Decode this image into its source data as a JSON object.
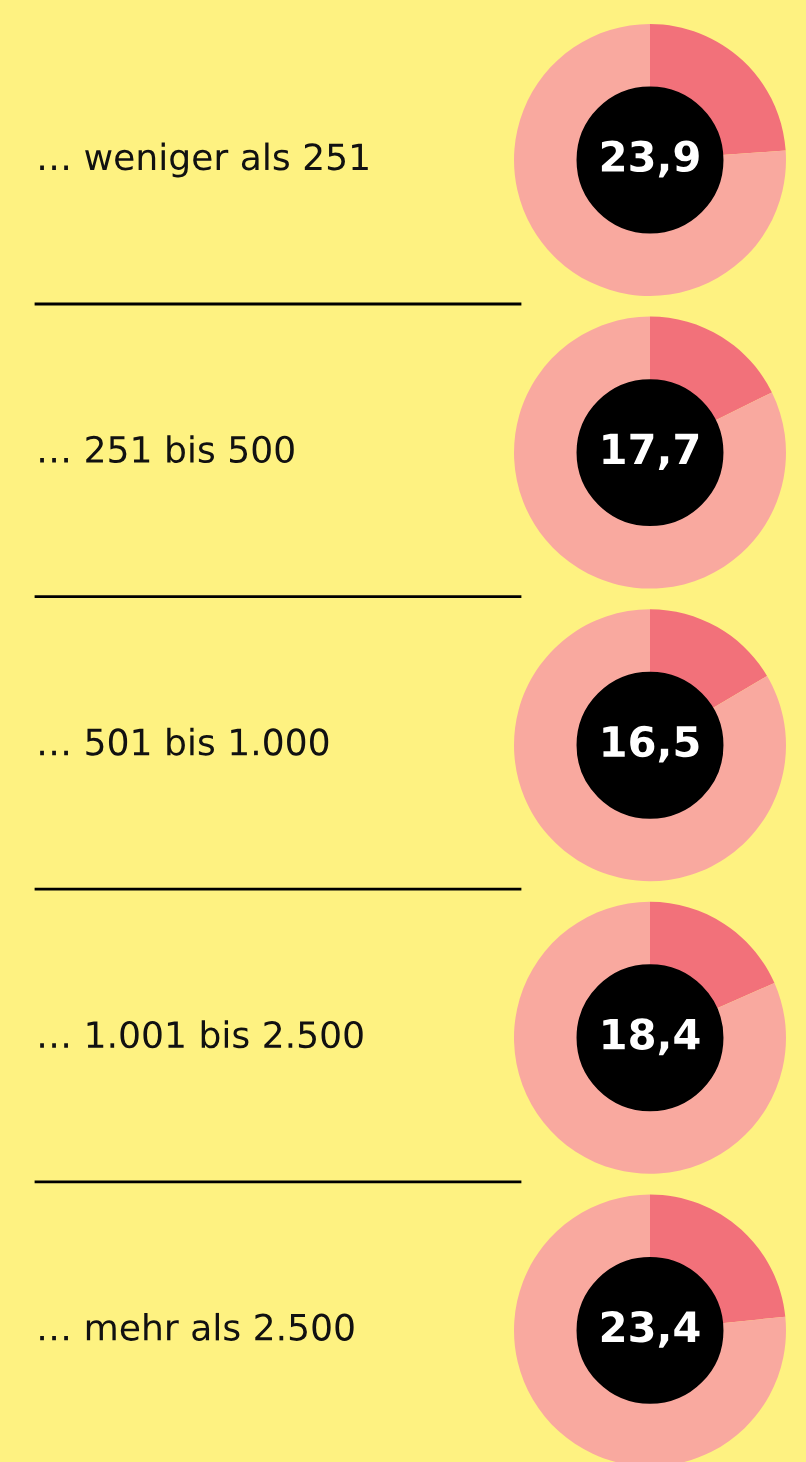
{
  "chart_data": [
    {
      "type": "donut",
      "title": "… weniger als 251",
      "categories": [
        null,
        null
      ],
      "values": [
        23.9,
        76.1
      ],
      "colors": [
        "#f2717a",
        "#f9a99f"
      ],
      "value_labels": [
        "23,9",
        null
      ]
    },
    {
      "type": "donut",
      "title": "… 251 bis 500",
      "categories": [
        null,
        null
      ],
      "values": [
        17.7,
        82.3
      ],
      "colors": [
        "#f2717a",
        "#f9a99f"
      ],
      "value_labels": [
        "17,7",
        null
      ]
    },
    {
      "type": "donut",
      "title": "… 501 bis 1.000",
      "categories": [
        null,
        null
      ],
      "values": [
        16.5,
        83.5
      ],
      "colors": [
        "#f2717a",
        "#f9a99f"
      ],
      "value_labels": [
        "16,5",
        null
      ]
    },
    {
      "type": "donut",
      "title": "… 1.001 bis 2.500",
      "categories": [
        null,
        null
      ],
      "values": [
        18.4,
        81.6
      ],
      "colors": [
        "#f2717a",
        "#f9a99f"
      ],
      "value_labels": [
        "18,4",
        null
      ]
    },
    {
      "type": "donut",
      "title": "… mehr als 2.500",
      "categories": [
        null,
        null
      ],
      "values": [
        23.4,
        76.6
      ],
      "colors": [
        "#f2717a",
        "#f9a99f"
      ],
      "value_labels": [
        "23,4",
        null
      ]
    }
  ]
}
